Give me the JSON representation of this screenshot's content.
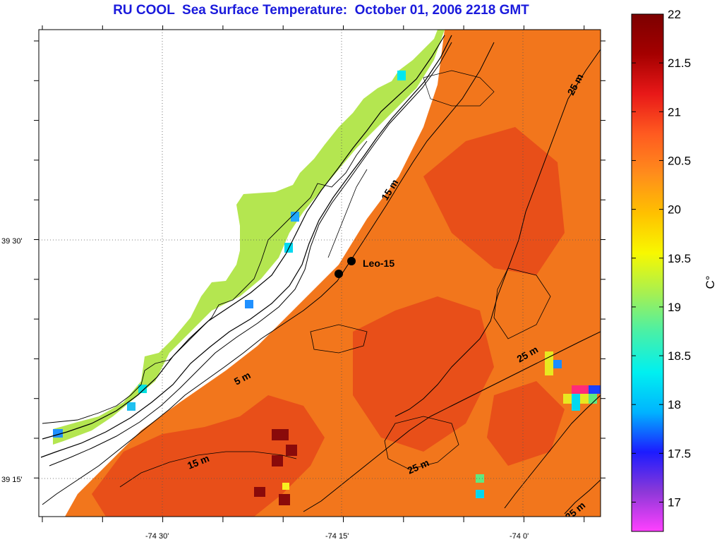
{
  "title": "RU COOL  Sea Surface Temperature:  October 01, 2006 2218 GMT",
  "map": {
    "longitude_ticks": [
      "-74 30'",
      "-74 15'",
      "-74 0'"
    ],
    "latitude_ticks": [
      "39 30'",
      "39 15'"
    ],
    "station": {
      "label": "Leo-15"
    },
    "isobath_labels": [
      "25 m",
      "15 m",
      "5 m",
      "15 m",
      "25 m",
      "25 m",
      "25 m"
    ]
  },
  "colorbar": {
    "unit": "C°",
    "ticks": [
      "22",
      "21.5",
      "21",
      "20.5",
      "20",
      "19.5",
      "19",
      "18.5",
      "18",
      "17.5",
      "17"
    ],
    "range": [
      16.7,
      22.0
    ],
    "stops": [
      "#ff40ff",
      "#8c38d8",
      "#1c1cff",
      "#00b4ff",
      "#00f0f0",
      "#48f0a8",
      "#a8f050",
      "#f8f800",
      "#ffc000",
      "#ff8c1c",
      "#ff5a20",
      "#e81818",
      "#a40000",
      "#7c0000"
    ]
  },
  "colors": {
    "ocean_base": "#f2761c",
    "warm_patch": "#e03018",
    "hot_patch": "#8a0a0a",
    "nearshore": "#b4e650",
    "land": "#ffffff"
  }
}
